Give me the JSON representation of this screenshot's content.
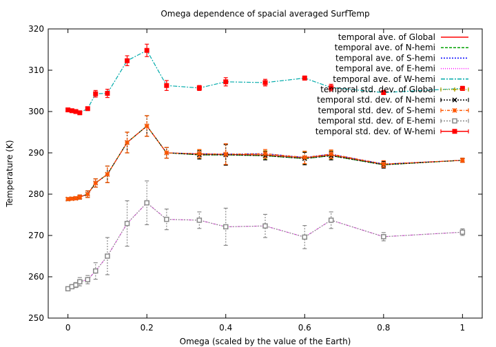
{
  "chart_data": {
    "type": "line",
    "title": "Omega dependence of spacial averaged SurfTemp",
    "xlabel": "Omega (scaled by the value of the Earth)",
    "ylabel": "Temperature (K)",
    "xlim": [
      -0.05,
      1.05
    ],
    "ylim": [
      250,
      320
    ],
    "xticks": [
      "0",
      "0.2",
      "0.4",
      "0.6",
      "0.8",
      "1"
    ],
    "xtick_values": [
      0,
      0.2,
      0.4,
      0.6,
      0.8,
      1.0
    ],
    "yticks": [
      "250",
      "260",
      "270",
      "280",
      "290",
      "300",
      "310",
      "320"
    ],
    "ytick_values": [
      250,
      260,
      270,
      280,
      290,
      300,
      310,
      320
    ],
    "legend_position": "top-right",
    "x": [
      0,
      0.01,
      0.02,
      0.03,
      0.05,
      0.07,
      0.1,
      0.15,
      0.2,
      0.25,
      0.333,
      0.4,
      0.5,
      0.6,
      0.667,
      0.8,
      1.0
    ],
    "series": [
      {
        "name": "temporal ave. of Global",
        "color": "#ff0000",
        "dash": "",
        "values": [
          278.8,
          278.9,
          279.0,
          279.3,
          280.0,
          282.7,
          284.8,
          292.5,
          296.5,
          290.0,
          289.7,
          289.6,
          289.5,
          288.8,
          289.5,
          287.2,
          288.2
        ]
      },
      {
        "name": "temporal ave. of N-hemi",
        "color": "#00a000",
        "dash": "4,2",
        "values": [
          278.8,
          278.9,
          279.0,
          279.3,
          280.0,
          282.7,
          284.8,
          292.5,
          296.5,
          290.0,
          289.5,
          289.5,
          289.3,
          288.6,
          289.3,
          287.1,
          288.2
        ]
      },
      {
        "name": "temporal ave. of S-hemi",
        "color": "#0000ff",
        "dash": "2,2",
        "values": [
          278.8,
          278.9,
          279.0,
          279.3,
          280.0,
          282.7,
          284.8,
          292.5,
          296.5,
          290.0,
          289.8,
          289.7,
          289.8,
          288.9,
          289.7,
          287.3,
          288.2
        ]
      },
      {
        "name": "temporal ave. of E-hemi",
        "color": "#ff00ff",
        "dash": "1,2",
        "values": [
          257.1,
          257.6,
          258.0,
          258.8,
          259.3,
          261.4,
          265.0,
          272.9,
          277.9,
          273.9,
          273.7,
          272.1,
          272.3,
          269.6,
          273.7,
          269.7,
          270.8
        ]
      },
      {
        "name": "temporal ave. of W-hemi",
        "color": "#00aaaa",
        "dash": "6,2,2,2",
        "values": [
          300.4,
          300.2,
          300.0,
          299.7,
          300.7,
          304.3,
          304.4,
          312.3,
          314.8,
          306.3,
          305.7,
          307.2,
          307.0,
          308.1,
          305.8,
          304.6,
          305.6
        ]
      },
      {
        "name": "temporal std. dev. of Global",
        "color": "#b0a000",
        "dash": "1,2",
        "marker": "plus",
        "values": [
          278.8,
          278.9,
          279.0,
          279.3,
          280.0,
          282.7,
          284.8,
          292.5,
          296.5,
          290.0,
          289.7,
          289.6,
          289.5,
          288.8,
          289.5,
          287.2,
          288.2
        ],
        "errors": [
          0.3,
          0.3,
          0.4,
          0.5,
          0.8,
          1.0,
          2.0,
          2.5,
          2.5,
          1.3,
          1.0,
          2.5,
          1.0,
          1.5,
          1.0,
          0.8,
          0.5
        ]
      },
      {
        "name": "temporal std. dev. of N-hemi",
        "color": "#000000",
        "dash": "2,2",
        "marker": "cross",
        "values": [
          278.8,
          278.9,
          279.0,
          279.3,
          280.0,
          282.7,
          284.8,
          292.5,
          296.5,
          290.0,
          289.5,
          289.5,
          289.3,
          288.6,
          289.3,
          287.1,
          288.2
        ],
        "errors": [
          0.3,
          0.3,
          0.4,
          0.5,
          0.8,
          1.0,
          2.0,
          2.5,
          2.5,
          1.3,
          1.0,
          2.5,
          1.0,
          1.5,
          1.0,
          0.8,
          0.5
        ]
      },
      {
        "name": "temporal std. dev. of S-hemi",
        "color": "#ff5500",
        "dash": "4,2,1,2",
        "marker": "star",
        "values": [
          278.8,
          278.9,
          279.0,
          279.3,
          280.0,
          282.7,
          284.8,
          292.5,
          296.5,
          290.0,
          289.8,
          289.7,
          289.8,
          288.9,
          289.7,
          287.3,
          288.2
        ],
        "errors": [
          0.3,
          0.3,
          0.4,
          0.5,
          0.8,
          1.0,
          2.0,
          2.5,
          2.5,
          1.3,
          1.0,
          2.5,
          1.0,
          1.5,
          1.0,
          0.8,
          0.5
        ]
      },
      {
        "name": "temporal std. dev. of E-hemi",
        "color": "#888888",
        "dash": "2,2",
        "marker": "square-open",
        "values": [
          257.1,
          257.6,
          258.0,
          258.8,
          259.3,
          261.4,
          265.0,
          272.9,
          277.9,
          273.9,
          273.7,
          272.1,
          272.3,
          269.6,
          273.7,
          269.7,
          270.8
        ],
        "errors": [
          0.4,
          0.4,
          0.6,
          1.0,
          1.0,
          2.0,
          4.5,
          5.5,
          5.3,
          2.5,
          2.0,
          4.5,
          2.8,
          2.8,
          2.0,
          1.0,
          0.8
        ]
      },
      {
        "name": "temporal std. dev. of W-hemi",
        "color": "#ff0000",
        "dash": "",
        "marker": "square-filled",
        "no_line": true,
        "values": [
          300.4,
          300.2,
          300.0,
          299.7,
          300.7,
          304.3,
          304.4,
          312.3,
          314.8,
          306.3,
          305.7,
          307.2,
          307.0,
          308.1,
          305.8,
          304.6,
          305.6
        ],
        "errors": [
          0.2,
          0.2,
          0.3,
          0.3,
          0.4,
          0.8,
          1.0,
          1.2,
          1.5,
          1.2,
          0.6,
          1.0,
          0.8,
          0.5,
          0.8,
          0.5,
          0.5
        ]
      }
    ]
  }
}
